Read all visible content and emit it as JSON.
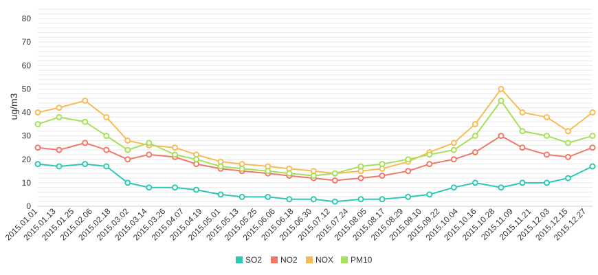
{
  "chart_data": {
    "type": "line",
    "title": "",
    "xlabel": "",
    "ylabel": "ug/m3",
    "ylim": [
      0,
      85
    ],
    "y_ticks": [
      0,
      10,
      20,
      30,
      40,
      50,
      60,
      70,
      80
    ],
    "x_start": "2015.01.01",
    "x_end": "2015.12.31",
    "x_tick_labels": [
      "2015.01.01",
      "2015.01.13",
      "2015.01.25",
      "2015.02.06",
      "2015.02.18",
      "2015.03.02",
      "2015.03.14",
      "2015.03.26",
      "2015.04.07",
      "2015.04.19",
      "2015.05.01",
      "2015.05.13",
      "2015.05.25",
      "2015.06.06",
      "2015.06.18",
      "2015.06.30",
      "2015.07.12",
      "2015.07.24",
      "2015.08.05",
      "2015.08.17",
      "2015.08.29",
      "2015.09.10",
      "2015.09.22",
      "2015.10.04",
      "2015.10.16",
      "2015.10.28",
      "2015.11.09",
      "2015.11.21",
      "2015.12.03",
      "2015.12.15",
      "2015.12.27"
    ],
    "grid": true,
    "legend_position": "bottom-center",
    "series": [
      {
        "name": "SO2",
        "color": "#2ec7b6",
        "x": [
          "2015.01.01",
          "2015.01.15",
          "2015.02.01",
          "2015.02.15",
          "2015.03.01",
          "2015.03.15",
          "2015.04.01",
          "2015.04.15",
          "2015.05.01",
          "2015.05.15",
          "2015.06.01",
          "2015.06.15",
          "2015.07.01",
          "2015.07.15",
          "2015.08.01",
          "2015.08.15",
          "2015.09.01",
          "2015.09.15",
          "2015.10.01",
          "2015.10.15",
          "2015.11.01",
          "2015.11.15",
          "2015.12.01",
          "2015.12.15",
          "2015.12.31"
        ],
        "values": [
          18,
          17,
          18,
          17,
          10,
          8,
          8,
          7,
          5,
          4,
          4,
          3,
          3,
          2,
          3,
          3,
          4,
          5,
          8,
          10,
          8,
          10,
          10,
          12,
          17
        ]
      },
      {
        "name": "NO2",
        "color": "#f0786a",
        "x": [
          "2015.01.01",
          "2015.01.15",
          "2015.02.01",
          "2015.02.15",
          "2015.03.01",
          "2015.03.15",
          "2015.04.01",
          "2015.04.15",
          "2015.05.01",
          "2015.05.15",
          "2015.06.01",
          "2015.06.15",
          "2015.07.01",
          "2015.07.15",
          "2015.08.01",
          "2015.08.15",
          "2015.09.01",
          "2015.09.15",
          "2015.10.01",
          "2015.10.15",
          "2015.11.01",
          "2015.11.15",
          "2015.12.01",
          "2015.12.15",
          "2015.12.31"
        ],
        "values": [
          25,
          24,
          27,
          24,
          20,
          22,
          21,
          18,
          16,
          15,
          14,
          13,
          12,
          11,
          12,
          13,
          15,
          18,
          20,
          23,
          30,
          25,
          22,
          21,
          25
        ]
      },
      {
        "name": "NOX",
        "color": "#f7bb55",
        "x": [
          "2015.01.01",
          "2015.01.15",
          "2015.02.01",
          "2015.02.15",
          "2015.03.01",
          "2015.03.15",
          "2015.04.01",
          "2015.04.15",
          "2015.05.01",
          "2015.05.15",
          "2015.06.01",
          "2015.06.15",
          "2015.07.01",
          "2015.07.15",
          "2015.08.01",
          "2015.08.15",
          "2015.09.01",
          "2015.09.15",
          "2015.10.01",
          "2015.10.15",
          "2015.11.01",
          "2015.11.15",
          "2015.12.01",
          "2015.12.15",
          "2015.12.31"
        ],
        "values": [
          40,
          42,
          45,
          38,
          28,
          26,
          25,
          22,
          19,
          18,
          17,
          16,
          15,
          14,
          15,
          16,
          19,
          23,
          27,
          35,
          50,
          40,
          38,
          32,
          40
        ]
      },
      {
        "name": "PM10",
        "color": "#a6e05a",
        "x": [
          "2015.01.01",
          "2015.01.15",
          "2015.02.01",
          "2015.02.15",
          "2015.03.01",
          "2015.03.15",
          "2015.04.01",
          "2015.04.15",
          "2015.05.01",
          "2015.05.15",
          "2015.06.01",
          "2015.06.15",
          "2015.07.01",
          "2015.07.15",
          "2015.08.01",
          "2015.08.15",
          "2015.09.01",
          "2015.09.15",
          "2015.10.01",
          "2015.10.15",
          "2015.11.01",
          "2015.11.15",
          "2015.12.01",
          "2015.12.15",
          "2015.12.31"
        ],
        "values": [
          35,
          38,
          36,
          30,
          24,
          27,
          22,
          20,
          17,
          16,
          15,
          14,
          13,
          14,
          17,
          18,
          20,
          22,
          24,
          30,
          45,
          32,
          30,
          27,
          30
        ]
      }
    ]
  }
}
